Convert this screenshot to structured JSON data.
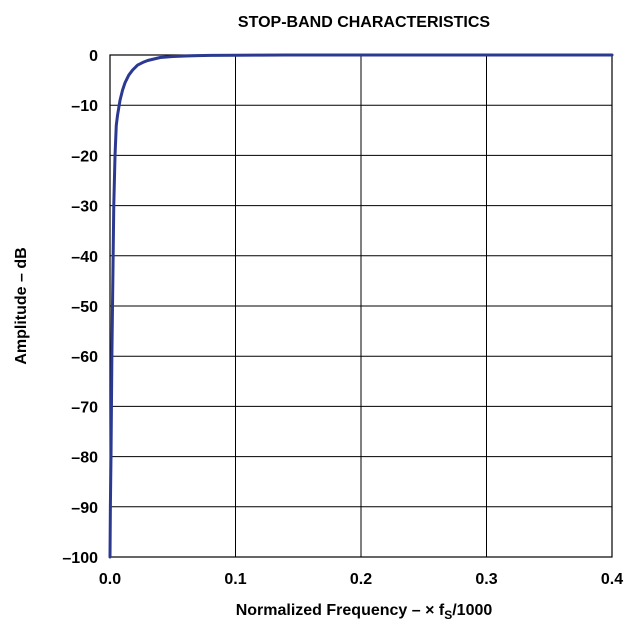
{
  "chart_data": {
    "type": "line",
    "title": "STOP-BAND CHARACTERISTICS",
    "xlabel": {
      "prefix": "Normalized Frequency – × f",
      "subscript": "S",
      "suffix": "/1000"
    },
    "ylabel": "Amplitude – dB",
    "xlim": [
      0.0,
      0.4
    ],
    "ylim": [
      -100,
      0
    ],
    "x_ticks": [
      0.0,
      0.1,
      0.2,
      0.3,
      0.4
    ],
    "x_tick_labels": [
      "0.0",
      "0.1",
      "0.2",
      "0.3",
      "0.4"
    ],
    "y_ticks": [
      0,
      -10,
      -20,
      -30,
      -40,
      -50,
      -60,
      -70,
      -80,
      -90,
      -100
    ],
    "y_tick_labels": [
      "0",
      "–10",
      "–20",
      "–30",
      "–40",
      "–50",
      "–60",
      "–70",
      "–80",
      "–90",
      "–100"
    ],
    "grid": true,
    "series": [
      {
        "color": "#2b3990",
        "x": [
          0.0,
          0.0003,
          0.0008,
          0.0015,
          0.002,
          0.003,
          0.004,
          0.005,
          0.006,
          0.008,
          0.01,
          0.012,
          0.015,
          0.018,
          0.022,
          0.026,
          0.03,
          0.035,
          0.04,
          0.05,
          0.06,
          0.07,
          0.08,
          0.1,
          0.12,
          0.14,
          0.2,
          0.25,
          0.3,
          0.35,
          0.4
        ],
        "y": [
          -100,
          -90,
          -80,
          -60,
          -50,
          -30,
          -20,
          -14,
          -12,
          -9,
          -7,
          -5.5,
          -4,
          -3,
          -2,
          -1.5,
          -1.1,
          -0.8,
          -0.5,
          -0.3,
          -0.2,
          -0.12,
          -0.08,
          -0.04,
          -0.02,
          -0.01,
          0,
          0,
          0,
          0,
          0
        ]
      }
    ]
  }
}
